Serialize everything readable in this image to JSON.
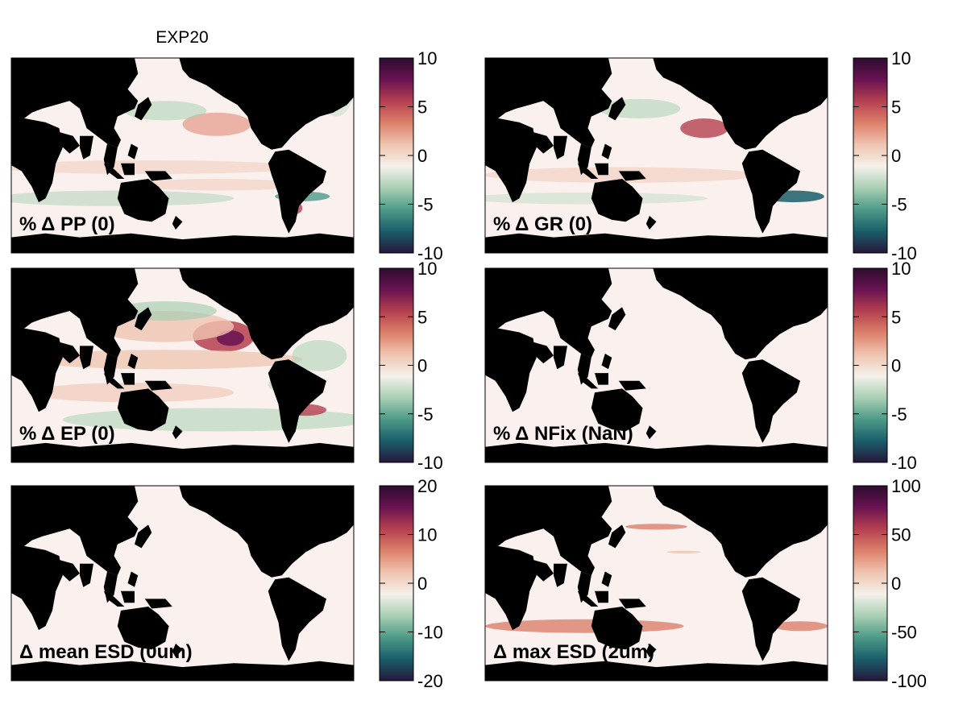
{
  "figure": {
    "title": "EXP20",
    "colors": {
      "land": "#000000",
      "ocean_base": "#faf1ee",
      "frame": "#000000",
      "cmap": [
        "#26173b",
        "#1a5e6a",
        "#4d9a88",
        "#a8cfb3",
        "#f4f1ea",
        "#efc4b0",
        "#dc806a",
        "#b5404f",
        "#6a1352",
        "#2c0d2e"
      ]
    },
    "panels": [
      {
        "id": "pp",
        "label": "% Δ PP (0)",
        "colorbar": {
          "range": [
            -10,
            10
          ],
          "ticks": [
            "10",
            "5",
            "0",
            "-5",
            "-10"
          ]
        },
        "features": [
          "N Pacific red band",
          "Southern Ocean green band",
          "weak red tropical stripes"
        ]
      },
      {
        "id": "gr",
        "label": "% Δ GR (0)",
        "colorbar": {
          "range": [
            -10,
            10
          ],
          "ticks": [
            "10",
            "5",
            "0",
            "-5",
            "-10"
          ]
        },
        "features": [
          "N Pacific red band",
          "S Atlantic teal patch"
        ]
      },
      {
        "id": "ep",
        "label": "% Δ EP (0)",
        "colorbar": {
          "range": [
            -10,
            10
          ],
          "ticks": [
            "10",
            "5",
            "0",
            "-5",
            "-10"
          ]
        },
        "features": [
          "strong N Pacific maximum",
          "green N Pacific",
          "red equatorial bands"
        ]
      },
      {
        "id": "nfix",
        "label": "% Δ NFix (NaN)",
        "colorbar": {
          "range": [
            -10,
            10
          ],
          "ticks": [
            "10",
            "5",
            "0",
            "-5",
            "-10"
          ]
        },
        "features": [
          "uniform"
        ]
      },
      {
        "id": "mean_esd",
        "label": "Δ mean ESD (0um)",
        "colorbar": {
          "range": [
            -20,
            20
          ],
          "ticks": [
            "20",
            "10",
            "0",
            "-10",
            "-20"
          ]
        },
        "features": [
          "uniform"
        ]
      },
      {
        "id": "max_esd",
        "label": "Δ max ESD (2um)",
        "colorbar": {
          "range": [
            -100,
            100
          ],
          "ticks": [
            "100",
            "50",
            "0",
            "-50",
            "-100"
          ]
        },
        "features": [
          "Southern Ocean salmon band",
          "N Pacific salmon patch"
        ]
      }
    ]
  }
}
